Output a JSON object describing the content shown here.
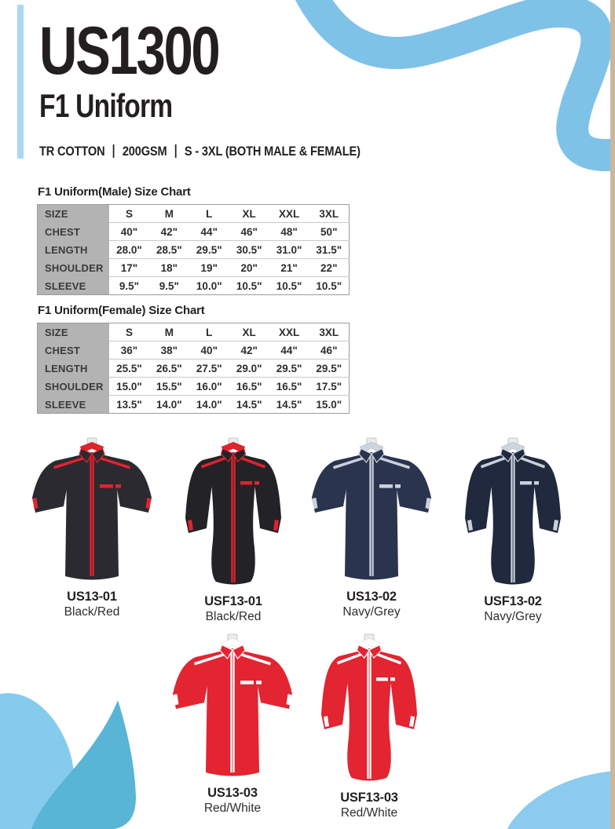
{
  "page": {
    "title": "US1300",
    "subtitle": "F1 Uniform",
    "specs": [
      "TR COTTON",
      "200GSM",
      "S - 3XL (BOTH MALE & FEMALE)"
    ]
  },
  "size_charts": [
    {
      "title": "F1 Uniform(Male) Size Chart",
      "rows": [
        {
          "label": "SIZE",
          "values": [
            "S",
            "M",
            "L",
            "XL",
            "XXL",
            "3XL"
          ]
        },
        {
          "label": "CHEST",
          "values": [
            "40\"",
            "42\"",
            "44\"",
            "46\"",
            "48\"",
            "50\""
          ]
        },
        {
          "label": "LENGTH",
          "values": [
            "28.0\"",
            "28.5\"",
            "29.5\"",
            "30.5\"",
            "31.0\"",
            "31.5\""
          ]
        },
        {
          "label": "SHOULDER",
          "values": [
            "17\"",
            "18\"",
            "19\"",
            "20\"",
            "21\"",
            "22\""
          ]
        },
        {
          "label": "SLEEVE",
          "values": [
            "9.5\"",
            "9.5\"",
            "10.0\"",
            "10.5\"",
            "10.5\"",
            "10.5\""
          ]
        }
      ]
    },
    {
      "title": "F1 Uniform(Female) Size Chart",
      "rows": [
        {
          "label": "SIZE",
          "values": [
            "S",
            "M",
            "L",
            "XL",
            "XXL",
            "3XL"
          ]
        },
        {
          "label": "CHEST",
          "values": [
            "36\"",
            "38\"",
            "40\"",
            "42\"",
            "44\"",
            "46\""
          ]
        },
        {
          "label": "LENGTH",
          "values": [
            "25.5\"",
            "26.5\"",
            "27.5\"",
            "29.0\"",
            "29.5\"",
            "29.5\""
          ]
        },
        {
          "label": "SHOULDER",
          "values": [
            "15.0\"",
            "15.5\"",
            "16.0\"",
            "16.5\"",
            "16.5\"",
            "17.5\""
          ]
        },
        {
          "label": "SLEEVE",
          "values": [
            "13.5\"",
            "14.0\"",
            "14.0\"",
            "14.5\"",
            "14.5\"",
            "15.0\""
          ]
        }
      ]
    }
  ],
  "products": [
    {
      "code": "US13-01",
      "colorway": "Black/Red",
      "cut": "male",
      "body_color": "#2a2a30",
      "trim_color": "#e1232e",
      "collar_color": "#e1232e"
    },
    {
      "code": "USF13-01",
      "colorway": "Black/Red",
      "cut": "female",
      "body_color": "#232327",
      "trim_color": "#e1232e",
      "collar_color": "#e1232e"
    },
    {
      "code": "US13-02",
      "colorway": "Navy/Grey",
      "cut": "male",
      "body_color": "#2a344e",
      "trim_color": "#c9d2da",
      "collar_color": "#ccd4dc"
    },
    {
      "code": "USF13-02",
      "colorway": "Navy/Grey",
      "cut": "female",
      "body_color": "#20293e",
      "trim_color": "#c9d2da",
      "collar_color": "#ccd4dc"
    },
    {
      "code": "US13-03",
      "colorway": "Red/White",
      "cut": "male",
      "body_color": "#e32431",
      "trim_color": "#ffffff",
      "collar_color": "#ffffff"
    },
    {
      "code": "USF13-03",
      "colorway": "Red/White",
      "cut": "female",
      "body_color": "#e32431",
      "trim_color": "#ffffff",
      "collar_color": "#ffffff"
    }
  ],
  "decor": {
    "ribbon_color": "#7fc2e8",
    "accent_bar_color": "#a9d9f2",
    "blob_light_color": "#85cbee",
    "blob_dark_color": "#58b5d6",
    "corner_blob_color": "#8bcbee",
    "edge_strip_color": "#cbb79d"
  }
}
